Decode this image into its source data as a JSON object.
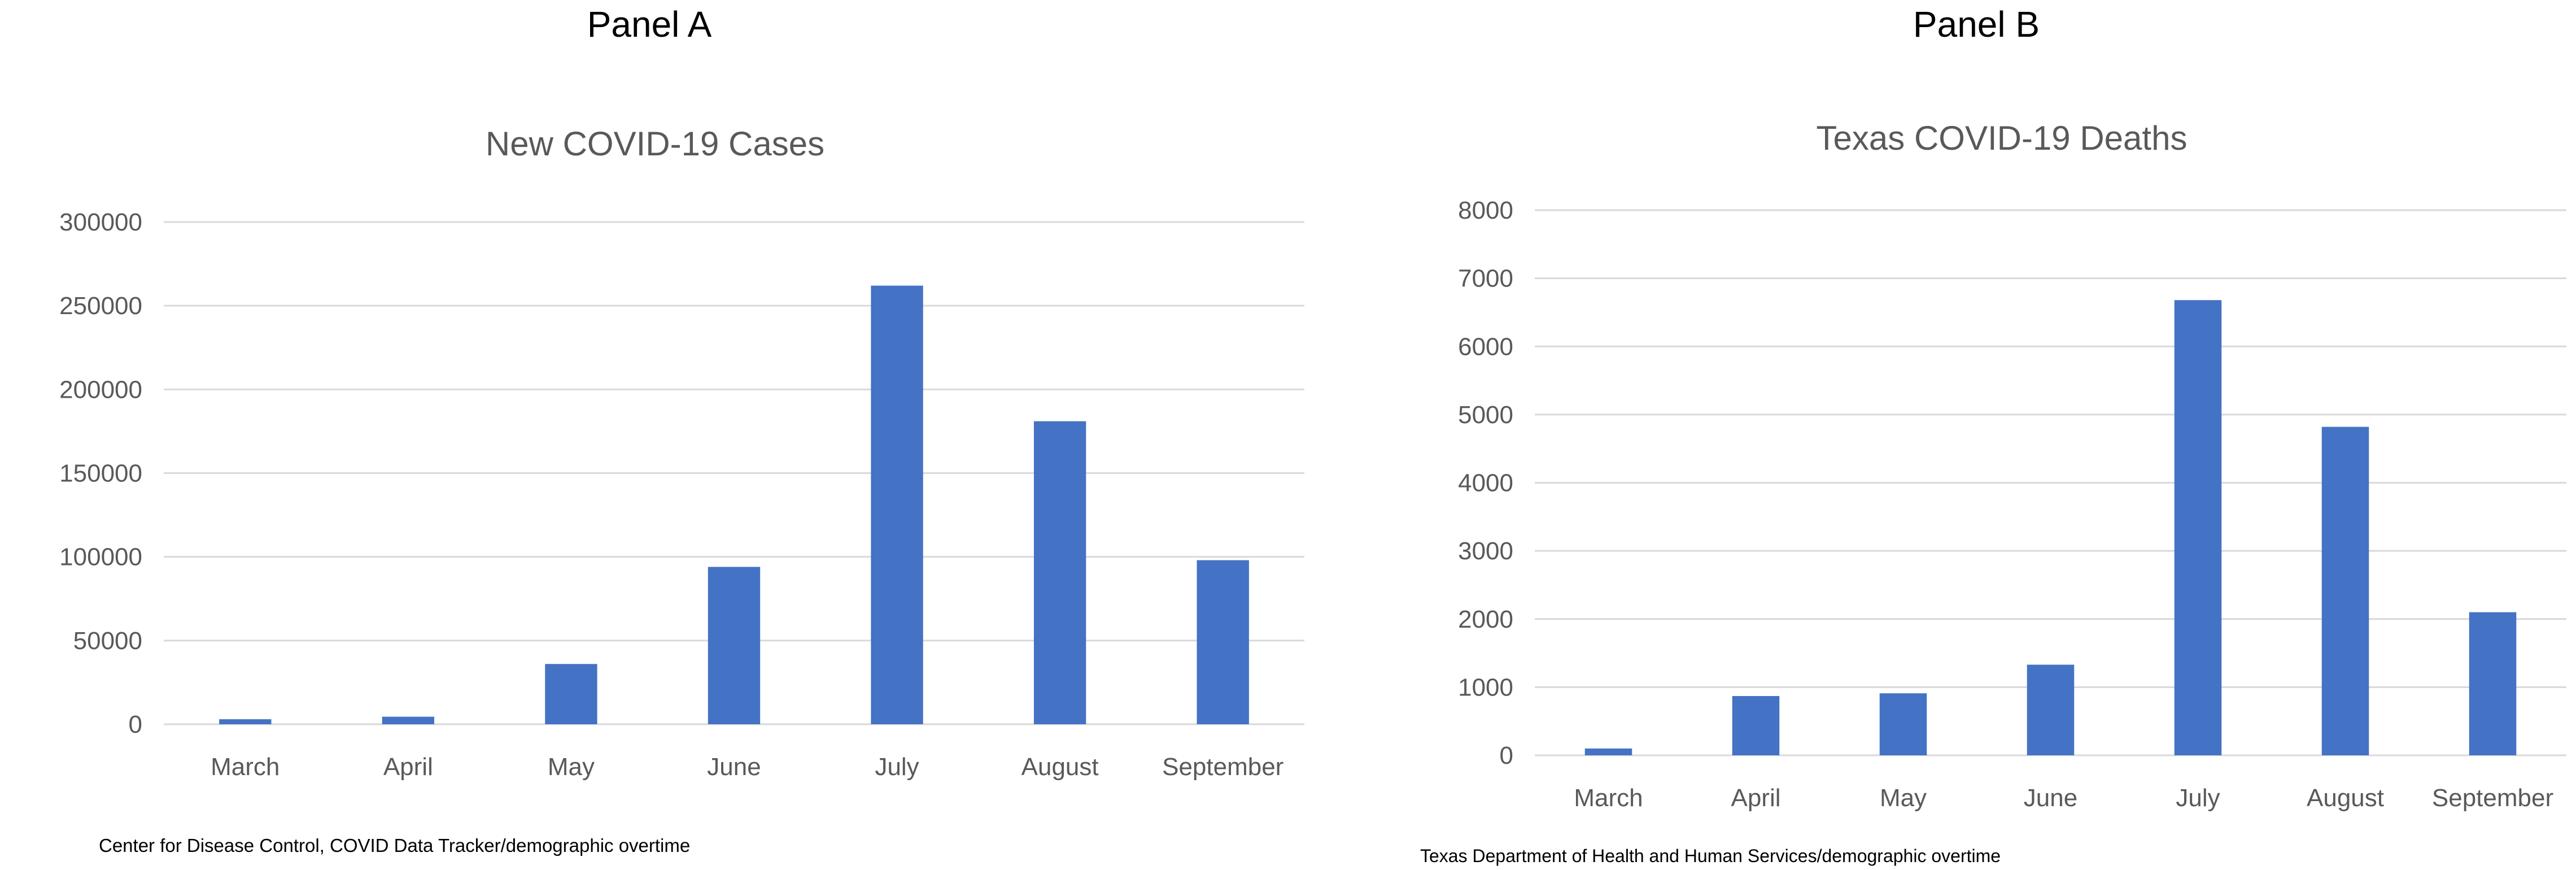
{
  "panels": [
    {
      "panel_label": "Panel A",
      "source": "Center  for Disease Control, COVID Data Tracker/demographic overtime",
      "chart_data": {
        "type": "bar",
        "title": "New COVID-19 Cases",
        "categories": [
          "March",
          "April",
          "May",
          "June",
          "July",
          "August",
          "September"
        ],
        "values": [
          3000,
          4500,
          36000,
          94000,
          262000,
          181000,
          98000
        ],
        "yticks": [
          0,
          50000,
          100000,
          150000,
          200000,
          250000,
          300000
        ],
        "ylim": [
          0,
          300000
        ],
        "grid": true,
        "bar_color": "#4472C4"
      }
    },
    {
      "panel_label": "Panel B",
      "source": "Texas Department of Health and Human Services/demographic overtime",
      "chart_data": {
        "type": "bar",
        "title": "Texas COVID-19  Deaths",
        "categories": [
          "March",
          "April",
          "May",
          "June",
          "July",
          "August",
          "September"
        ],
        "values": [
          100,
          870,
          910,
          1330,
          6680,
          4820,
          2100
        ],
        "yticks": [
          0,
          1000,
          2000,
          3000,
          4000,
          5000,
          6000,
          7000,
          8000
        ],
        "ylim": [
          0,
          8000
        ],
        "grid": true,
        "bar_color": "#4472C4"
      }
    }
  ]
}
